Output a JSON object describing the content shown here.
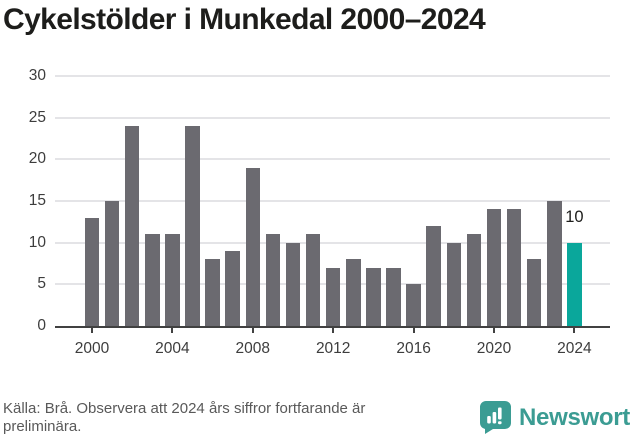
{
  "title": "Cykelstölder i Munkedal 2000–2024",
  "chart_data": {
    "type": "bar",
    "title": "Cykelstölder i Munkedal 2000–2024",
    "series_name": "Cykelstölder",
    "x": [
      2000,
      2001,
      2002,
      2003,
      2004,
      2005,
      2006,
      2007,
      2008,
      2009,
      2010,
      2011,
      2012,
      2013,
      2014,
      2015,
      2016,
      2017,
      2018,
      2019,
      2020,
      2021,
      2022,
      2023,
      2024
    ],
    "values": [
      13,
      15,
      24,
      11,
      11,
      24,
      8,
      9,
      19,
      11,
      10,
      11,
      7,
      8,
      7,
      7,
      5,
      12,
      10,
      11,
      14,
      14,
      8,
      15,
      10
    ],
    "ylim": [
      0,
      30
    ],
    "yticks": [
      0,
      5,
      10,
      15,
      20,
      25,
      30
    ],
    "xtick_years": [
      2000,
      2004,
      2008,
      2012,
      2016,
      2020,
      2024
    ],
    "grid": "horizontal",
    "legend": "none",
    "bar_color": "#6b6a70",
    "highlight_index": 24,
    "highlight_color": "#0aa79b",
    "highlight_value_label": "10"
  },
  "footer": {
    "source_note": "Källa: Brå. Observera att 2024 års siffror fortfarande är preliminära."
  },
  "branding": {
    "name": "Newsworthy",
    "color": "#3b9c93",
    "icon": "newsworthy-speech-bubble-chart-icon"
  }
}
